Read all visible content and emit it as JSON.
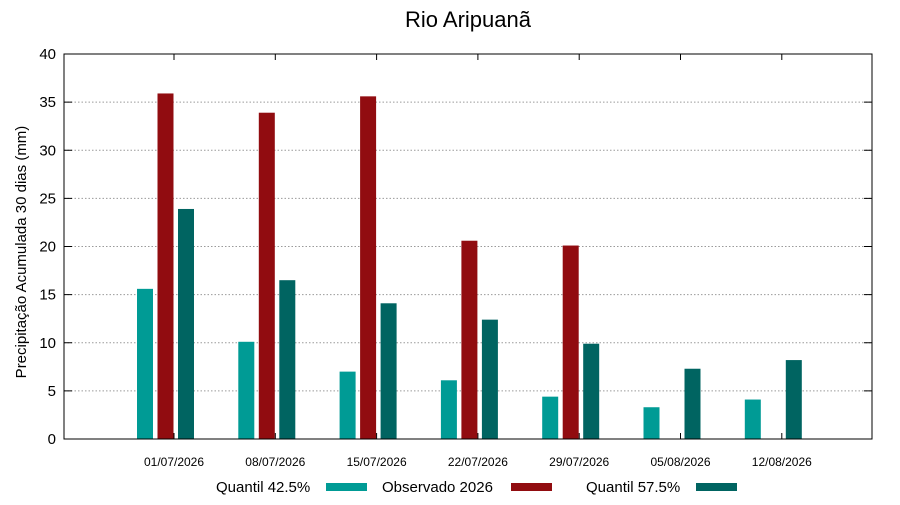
{
  "chart_data": {
    "type": "bar",
    "title": "Rio Aripuanã",
    "xlabel": "",
    "ylabel": "Precipitação Acumulada 30 dias (mm)",
    "ylim": [
      0,
      40
    ],
    "yticks": [
      "0",
      "5",
      "10",
      "15",
      "20",
      "25",
      "30",
      "35",
      "40"
    ],
    "grid": true,
    "legend_position": "bottom",
    "categories": [
      "01/07/2026",
      "08/07/2026",
      "15/07/2026",
      "22/07/2026",
      "29/07/2026",
      "05/08/2026",
      "12/08/2026"
    ],
    "series": [
      {
        "name": "Quantil 42.5%",
        "color": "#009b95",
        "values": [
          15.6,
          10.1,
          7.0,
          6.1,
          4.4,
          3.3,
          4.1
        ]
      },
      {
        "name": "Observado 2026",
        "color": "#910c10",
        "values": [
          35.9,
          33.9,
          35.6,
          20.6,
          20.1,
          null,
          null
        ]
      },
      {
        "name": "Quantil 57.5%",
        "color": "#006461",
        "values": [
          23.9,
          16.5,
          14.1,
          12.4,
          9.9,
          7.3,
          8.2
        ]
      }
    ]
  }
}
